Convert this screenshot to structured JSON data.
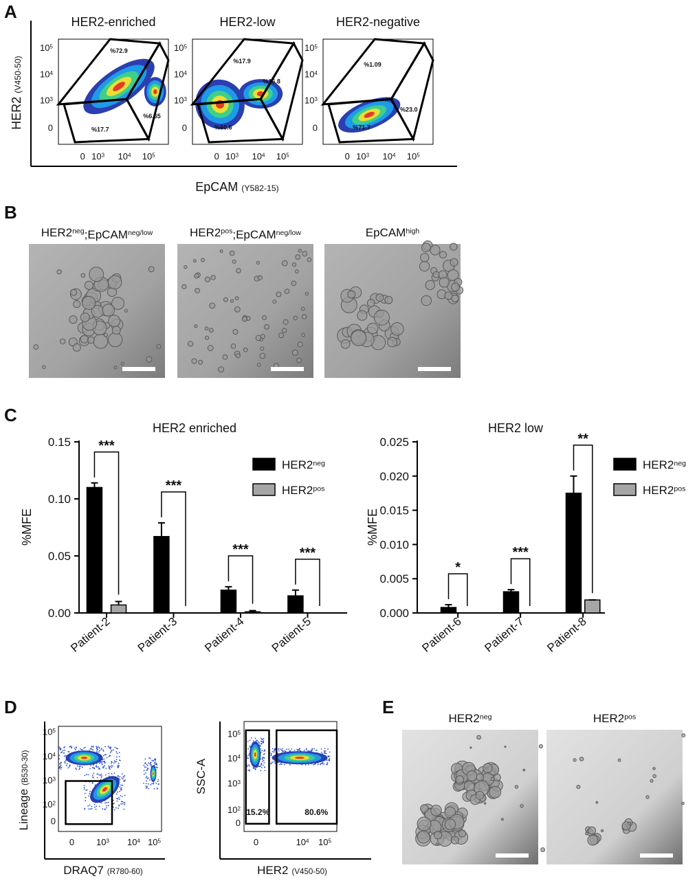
{
  "A": {
    "letter": "A",
    "plots": [
      {
        "title": "HER2-enriched",
        "gates": [
          "%72.9",
          "%6.65",
          "%17.7"
        ]
      },
      {
        "title": "HER2-low",
        "gates": [
          "%17.9",
          "%16.8",
          "%60.6"
        ]
      },
      {
        "title": "HER2-negative",
        "gates": [
          "%1.09",
          "%23.0",
          "%71.7"
        ]
      }
    ],
    "y_ticks": [
      {
        "base": "10",
        "exp": "5"
      },
      {
        "base": "10",
        "exp": "4"
      },
      {
        "base": "10",
        "exp": "3"
      },
      "0"
    ],
    "x_ticks": [
      "0",
      {
        "base": "10",
        "exp": "3"
      },
      {
        "base": "10",
        "exp": "4"
      },
      {
        "base": "10",
        "exp": "5"
      }
    ],
    "y_label": "HER2",
    "y_label_channel": "(V450-50)",
    "x_label": "EpCAM",
    "x_label_channel": "(Y582-15)"
  },
  "B": {
    "letter": "B",
    "images": [
      {
        "title": [
          {
            "text": "HER2"
          },
          {
            "sup": "neg"
          },
          {
            "text": ";EpCAM"
          },
          {
            "sup": "neg/low"
          }
        ]
      },
      {
        "title": [
          {
            "text": "HER2"
          },
          {
            "sup": "pos"
          },
          {
            "text": ";EpCAM"
          },
          {
            "sup": "neg/low"
          }
        ]
      },
      {
        "title": [
          {
            "text": "EpCAM"
          },
          {
            "sup": "high"
          }
        ]
      }
    ]
  },
  "C": {
    "letter": "C",
    "charts": [
      {
        "type": "bar",
        "title": "HER2 enriched",
        "y_label": "%MFE",
        "categories": [
          "Patient-2",
          "Patient-3",
          "Patient-4",
          "Patient-5"
        ],
        "series": [
          {
            "name": "HER2",
            "name_sup": "neg",
            "color": "#000000",
            "values": [
              0.11,
              0.067,
              0.02,
              0.015
            ],
            "errors": [
              0.004,
              0.012,
              0.003,
              0.005
            ]
          },
          {
            "name": "HER2",
            "name_sup": "pos",
            "color": "#a6a6a6",
            "values": [
              0.007,
              0,
              0.001,
              0
            ],
            "errors": [
              0.003,
              0,
              0.001,
              0
            ]
          }
        ],
        "ylim": [
          0,
          0.15
        ],
        "yticks": [
          {
            "value": 0,
            "label": "0.00"
          },
          0.05,
          {
            "value": 0.1,
            "label": "0.10"
          },
          0.15
        ],
        "significance": [
          "***",
          "***",
          "***",
          "***"
        ]
      },
      {
        "type": "bar",
        "title": "HER2 low",
        "y_label": "%MFE",
        "categories": [
          "Patient-6",
          "Patient-7",
          "Patient-8"
        ],
        "series": [
          {
            "name": "HER2",
            "name_sup": "neg",
            "color": "#000000",
            "values": [
              0.0008,
              0.0031,
              0.0175
            ],
            "errors": [
              0.0004,
              0.0003,
              0.0025
            ]
          },
          {
            "name": "HER2",
            "name_sup": "pos",
            "color": "#a6a6a6",
            "values": [
              0,
              0,
              0.0019
            ],
            "errors": [
              0,
              0,
              0
            ]
          }
        ],
        "ylim": [
          0,
          0.025
        ],
        "yticks": [
          {
            "value": 0,
            "label": "0.000"
          },
          0.005,
          {
            "value": 0.01,
            "label": "0.010"
          },
          0.015,
          {
            "value": 0.02,
            "label": "0.020"
          },
          0.025
        ],
        "significance": [
          "*",
          "***",
          "**"
        ]
      }
    ]
  },
  "D": {
    "letter": "D",
    "plots": [
      {
        "y_label": "Lineage",
        "y_label_channel": "(B530-30)",
        "x_label": "DRAQ7",
        "x_label_channel": "(R780-60)",
        "y_ticks": [
          {
            "base": "10",
            "exp": "5"
          },
          {
            "base": "10",
            "exp": "4"
          },
          {
            "base": "10",
            "exp": "3"
          },
          {
            "base": "10",
            "exp": "2"
          },
          "0"
        ],
        "x_ticks": [
          "0",
          {
            "base": "10",
            "exp": "3"
          },
          {
            "base": "10",
            "exp": "4"
          },
          {
            "base": "10",
            "exp": "5"
          }
        ]
      },
      {
        "y_label": "SSC-A",
        "x_label": "HER2",
        "x_label_channel": "(V450-50)",
        "gates": [
          "15.2%",
          "80.6%"
        ],
        "y_ticks": [
          {
            "base": "10",
            "exp": "5"
          },
          {
            "base": "10",
            "exp": "4"
          },
          {
            "base": "10",
            "exp": "3"
          },
          {
            "base": "10",
            "exp": "2"
          },
          "0"
        ],
        "x_ticks": [
          "0",
          {
            "base": "10",
            "exp": "4"
          },
          {
            "base": "10",
            "exp": "5"
          }
        ]
      }
    ]
  },
  "E": {
    "letter": "E",
    "images": [
      {
        "title": [
          {
            "text": "HER2"
          },
          {
            "sup": "neg"
          }
        ]
      },
      {
        "title": [
          {
            "text": "HER2"
          },
          {
            "sup": "pos"
          }
        ]
      }
    ]
  }
}
